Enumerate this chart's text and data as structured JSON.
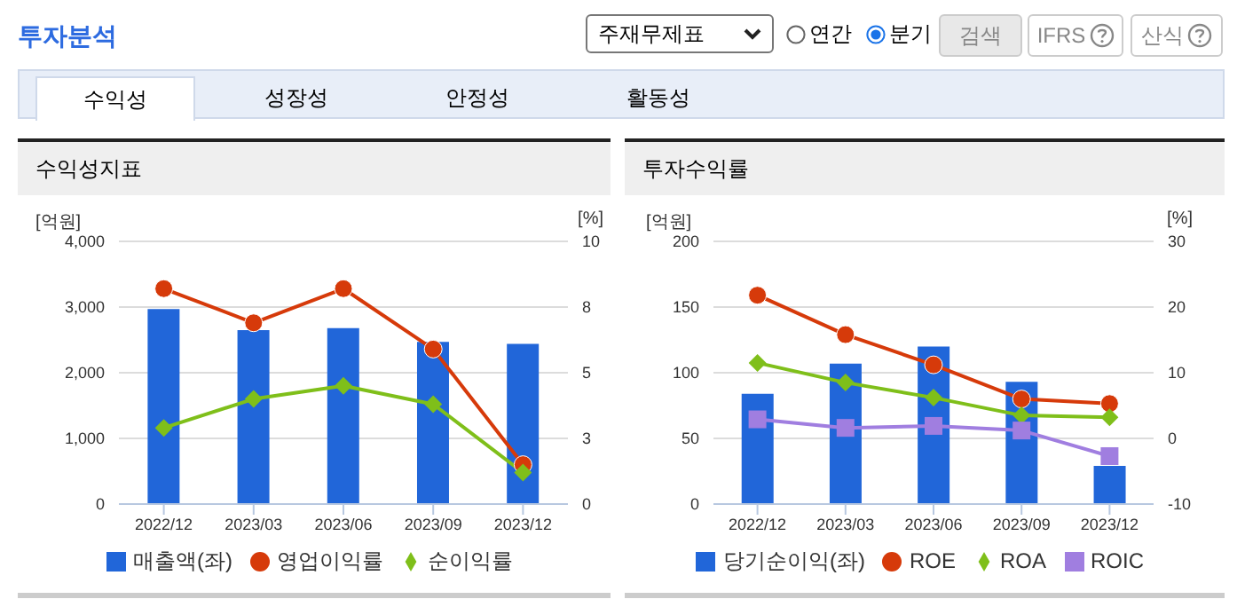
{
  "chart_data": [
    {
      "type": "other",
      "title": "투자분석",
      "annotations": [
        "주재무제표",
        "연간",
        "분기",
        "검색",
        "IFRS",
        "산식",
        "수익성",
        "성장성",
        "안정성",
        "활동성"
      ]
    },
    {
      "type": "bar",
      "title": "수익성지표",
      "ylabel": "[억원]",
      "y2label": "[%]",
      "categories": [
        "2022/12",
        "2023/03",
        "2023/06",
        "2023/09",
        "2023/12"
      ],
      "series": [
        {
          "name": "매출액(좌)",
          "type": "bar",
          "color": "#2166d9",
          "values": [
            2970,
            2650,
            2680,
            2470,
            2440
          ]
        },
        {
          "name": "영업이익률",
          "type": "line",
          "axis": "y2",
          "marker": "circle",
          "color": "#d63a0a",
          "values": [
            8.2,
            6.9,
            8.2,
            5.9,
            1.5
          ]
        },
        {
          "name": "순이익률",
          "type": "line",
          "axis": "y2",
          "marker": "diamond",
          "color": "#7fbf1a",
          "values": [
            2.9,
            4.0,
            4.5,
            3.8,
            1.2
          ]
        }
      ],
      "ylim": [
        0,
        4000
      ],
      "yticks": [
        0,
        {
          "value": 1000,
          "label": "1,000"
        },
        {
          "value": 2000,
          "label": "2,000"
        },
        {
          "value": 3000,
          "label": "3,000"
        },
        {
          "value": 4000,
          "label": "4,000"
        }
      ],
      "y2lim": [
        0,
        10
      ],
      "y2ticks": [
        0,
        {
          "value": 2.5,
          "label": "3"
        },
        5,
        {
          "value": 7.5,
          "label": "8"
        },
        10
      ],
      "grid": "y",
      "legend": "bottom"
    },
    {
      "type": "bar",
      "title": "투자수익률",
      "ylabel": "[억원]",
      "y2label": "[%]",
      "categories": [
        "2022/12",
        "2023/03",
        "2023/06",
        "2023/09",
        "2023/12"
      ],
      "series": [
        {
          "name": "당기순이익(좌)",
          "type": "bar",
          "color": "#2166d9",
          "values": [
            84,
            107,
            120,
            93,
            29
          ]
        },
        {
          "name": "ROE",
          "type": "line",
          "axis": "y2",
          "marker": "circle",
          "color": "#d63a0a",
          "values": [
            21.8,
            15.8,
            11.2,
            6.0,
            5.3
          ]
        },
        {
          "name": "ROA",
          "type": "line",
          "axis": "y2",
          "marker": "diamond",
          "color": "#7fbf1a",
          "values": [
            11.5,
            8.5,
            6.2,
            3.5,
            3.2
          ]
        },
        {
          "name": "ROIC",
          "type": "line",
          "axis": "y2",
          "marker": "square",
          "color": "#a07ee0",
          "values": [
            2.9,
            1.6,
            1.9,
            1.2,
            -2.7
          ]
        }
      ],
      "ylim": [
        0,
        200
      ],
      "yticks": [
        0,
        50,
        100,
        150,
        200
      ],
      "y2lim": [
        -10,
        30
      ],
      "y2ticks": [
        -10,
        0,
        10,
        20,
        30
      ],
      "grid": "y",
      "legend": "bottom"
    }
  ]
}
